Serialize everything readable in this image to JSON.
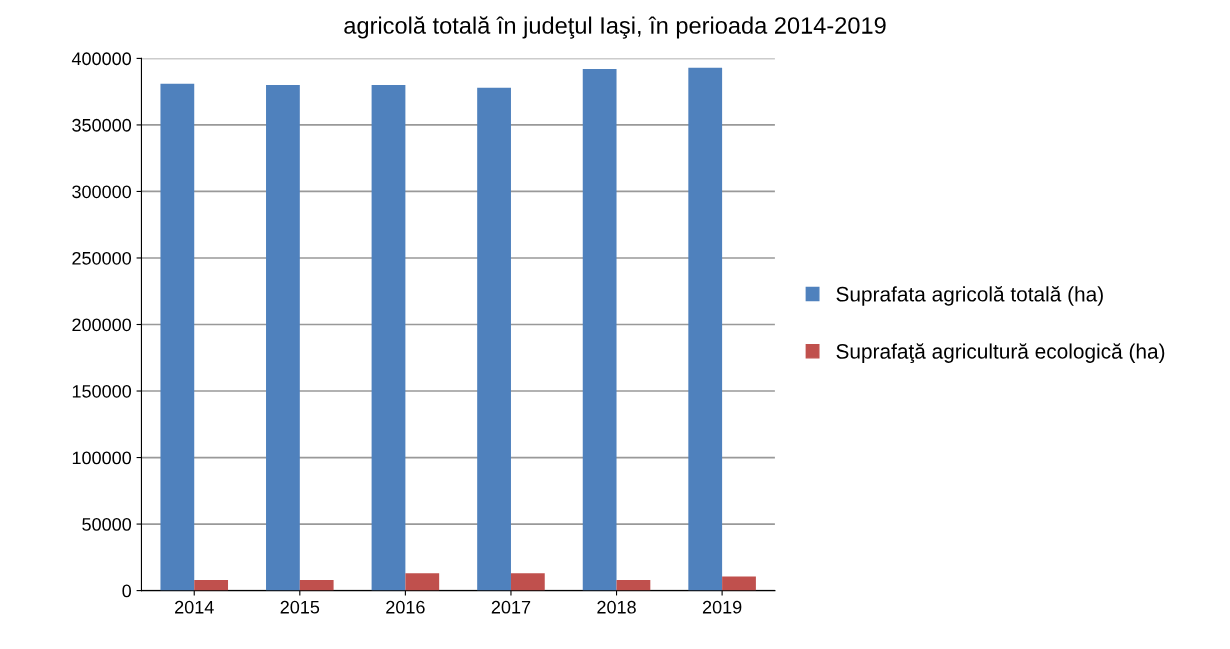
{
  "chart_data": {
    "type": "bar",
    "title": "agricolă totală în judeţul Iaşi, în perioada 2014-2019",
    "categories": [
      "2014",
      "2015",
      "2016",
      "2017",
      "2018",
      "2019"
    ],
    "series": [
      {
        "name": "Suprafata agricolă totală (ha)",
        "color": "#4f81bd",
        "values": [
          381000,
          380000,
          380000,
          378000,
          392000,
          393000
        ]
      },
      {
        "name": "Suprafaţă agricultură ecologică (ha)",
        "color": "#c0504d",
        "values": [
          8000,
          8000,
          13000,
          13000,
          8000,
          10500
        ]
      }
    ],
    "ylim": [
      0,
      400000
    ],
    "yticks": [
      0,
      50000,
      100000,
      150000,
      200000,
      250000,
      300000,
      350000,
      400000
    ],
    "grid": "y",
    "legend": "right"
  }
}
